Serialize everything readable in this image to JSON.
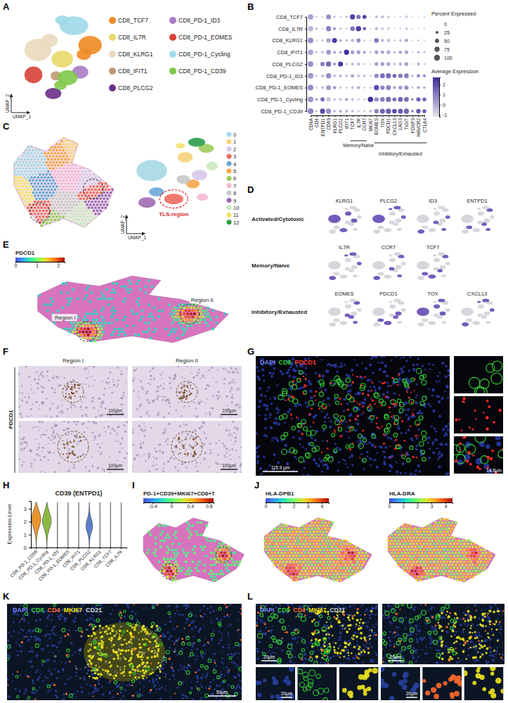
{
  "chart_data": [
    {
      "type": "dot",
      "categories": [
        "CD8A",
        "CD4",
        "ENTPD1",
        "CD69",
        "KLRG1",
        "PLCG2",
        "IFIT1",
        "TCF7",
        "IL7R",
        "CCR7",
        "MKI67",
        "EOMES",
        "TOX",
        "PDCD1",
        "CXCL13",
        "LAG3",
        "TIGIT",
        "FOXP3",
        "HAVCR2",
        "CTLA4"
      ],
      "rows": [
        "CD8_TCF7",
        "CD8_IL7R",
        "CD8_KLRG1",
        "CD8_IFIT1",
        "CD8_PLCG2",
        "CD8_PD-1_ID3",
        "CD8_PD-1_EOMES",
        "CD8_PD-1_Cycling",
        "CD8_PD-1_CD39"
      ],
      "pct": [
        [
          85,
          10,
          8,
          70,
          15,
          10,
          15,
          75,
          55,
          45,
          5,
          25,
          25,
          20,
          5,
          10,
          20,
          5,
          5,
          5
        ],
        [
          80,
          12,
          10,
          75,
          30,
          15,
          10,
          60,
          80,
          35,
          5,
          30,
          20,
          20,
          5,
          10,
          20,
          5,
          5,
          5
        ],
        [
          90,
          8,
          15,
          60,
          70,
          20,
          15,
          30,
          50,
          10,
          5,
          60,
          30,
          35,
          10,
          20,
          35,
          5,
          10,
          5
        ],
        [
          85,
          10,
          20,
          65,
          25,
          20,
          75,
          40,
          40,
          20,
          10,
          40,
          35,
          40,
          15,
          30,
          40,
          5,
          15,
          10
        ],
        [
          90,
          5,
          55,
          80,
          30,
          70,
          15,
          25,
          30,
          10,
          5,
          40,
          40,
          45,
          15,
          30,
          45,
          5,
          20,
          10
        ],
        [
          90,
          10,
          25,
          75,
          20,
          20,
          15,
          35,
          25,
          15,
          10,
          55,
          65,
          75,
          45,
          55,
          65,
          10,
          35,
          25
        ],
        [
          90,
          8,
          20,
          70,
          30,
          15,
          10,
          20,
          30,
          10,
          8,
          75,
          55,
          65,
          25,
          40,
          55,
          8,
          25,
          15
        ],
        [
          90,
          15,
          50,
          50,
          15,
          15,
          25,
          20,
          15,
          10,
          80,
          55,
          60,
          75,
          45,
          65,
          65,
          15,
          55,
          45
        ],
        [
          95,
          10,
          75,
          75,
          20,
          20,
          20,
          20,
          15,
          10,
          15,
          60,
          70,
          80,
          60,
          70,
          75,
          15,
          60,
          45
        ]
      ],
      "avg": [
        [
          0.2,
          -0.5,
          -0.8,
          0.6,
          -0.4,
          -0.5,
          -0.3,
          2.2,
          1.2,
          2.3,
          -0.6,
          -0.4,
          -0.3,
          -0.7,
          -0.6,
          -0.7,
          -0.5,
          -0.3,
          -0.6,
          -0.5
        ],
        [
          -0.2,
          0.2,
          -0.7,
          0.9,
          0.2,
          -0.3,
          -0.4,
          1.2,
          2.3,
          1.4,
          -0.6,
          -0.3,
          -0.6,
          -0.6,
          -0.6,
          -0.6,
          -0.5,
          -0.3,
          -0.5,
          -0.4
        ],
        [
          0.6,
          -0.4,
          -0.5,
          0.1,
          2.4,
          0.0,
          -0.2,
          -0.2,
          0.6,
          -0.3,
          -0.5,
          1.1,
          -0.2,
          -0.4,
          -0.5,
          -0.4,
          0.0,
          -0.4,
          -0.3,
          -0.5
        ],
        [
          0.1,
          0.0,
          -0.3,
          0.4,
          0.1,
          0.1,
          2.6,
          0.3,
          0.3,
          0.4,
          -0.2,
          0.2,
          0.2,
          0.0,
          -0.2,
          0.2,
          0.1,
          -0.2,
          0.0,
          0.0
        ],
        [
          0.5,
          -0.6,
          1.0,
          1.3,
          0.2,
          2.5,
          -0.3,
          -0.4,
          -0.2,
          -0.4,
          -0.5,
          0.2,
          0.3,
          0.1,
          -0.3,
          0.0,
          0.2,
          -0.4,
          0.2,
          -0.3
        ],
        [
          0.4,
          -0.2,
          -0.1,
          0.7,
          -0.2,
          -0.1,
          -0.2,
          0.1,
          -0.4,
          -0.1,
          -0.2,
          0.7,
          1.3,
          1.4,
          1.5,
          1.1,
          1.0,
          0.5,
          0.6,
          0.8
        ],
        [
          0.7,
          -0.4,
          -0.2,
          0.4,
          0.5,
          -0.4,
          -0.4,
          -0.3,
          0.0,
          -0.4,
          -0.3,
          2.0,
          0.8,
          0.9,
          0.2,
          0.4,
          0.6,
          0.0,
          0.2,
          0.1
        ],
        [
          0.5,
          0.4,
          1.3,
          -0.5,
          -0.3,
          -0.2,
          0.4,
          -0.3,
          -0.6,
          -0.3,
          2.6,
          0.7,
          1.0,
          1.3,
          1.2,
          1.5,
          1.2,
          1.0,
          1.4,
          1.4
        ],
        [
          0.8,
          0.1,
          2.0,
          0.6,
          -0.2,
          0.2,
          0.0,
          -0.3,
          -0.5,
          -0.3,
          0.2,
          0.8,
          1.5,
          1.6,
          2.0,
          1.7,
          1.5,
          1.4,
          1.7,
          1.6
        ]
      ],
      "size_legend": {
        "title": "Percent Expressed",
        "ticks": [
          0,
          25,
          50,
          75,
          100
        ]
      },
      "color_legend": {
        "title": "Average Expression",
        "range": [
          -1.2,
          2.7
        ],
        "ticks": [
          -1,
          0,
          1,
          2
        ]
      },
      "groups": [
        {
          "label": "Memory/Naive",
          "genes": [
            "TCF7",
            "IL7R",
            "CCR7"
          ]
        },
        {
          "label": "Inhibitory/Exhausted",
          "genes": [
            "EOMES",
            "TOX",
            "PDCD1",
            "CXCL13",
            "LAG3",
            "TIGIT",
            "FOXP3",
            "HAVCR2",
            "CTLA4"
          ]
        }
      ]
    },
    {
      "type": "violin",
      "title": "CD39 (ENTPD1)",
      "y_label": "Expression Level",
      "categories": [
        "CD8_PD-1_CD39",
        "CD8_PD-1_Cycling",
        "CD8_PD-1_ID3",
        "CD8_PD-1_EOMES",
        "CD8_IFIT1",
        "CD8_PLCG2",
        "CD8_KLRG1",
        "CD8_TCF7",
        "CD8_IL7R"
      ],
      "colors": [
        "#e8952e",
        "#8ab840",
        "#4aa8a0",
        "#3aa0c8",
        "#5b8fd0",
        "#5b7fc8",
        "#9f7fc8",
        "#c77fc0",
        "#e07fa0"
      ],
      "density_y": [
        0,
        0.5,
        1,
        1.5,
        2,
        2.5,
        3,
        3.5
      ],
      "density": [
        [
          0,
          0.05,
          0.15,
          0.5,
          0.95,
          0.9,
          0.35,
          0.05
        ],
        [
          0,
          0.05,
          0.15,
          0.55,
          1.0,
          0.7,
          0.25,
          0.03
        ],
        [
          0.02,
          0.01,
          0.01,
          0.01,
          0.01,
          0.01,
          0,
          0
        ],
        [
          0.02,
          0.01,
          0.01,
          0.01,
          0.01,
          0,
          0,
          0
        ],
        [
          0.02,
          0.01,
          0.01,
          0.01,
          0.01,
          0.01,
          0,
          0
        ],
        [
          0,
          0.05,
          0.2,
          0.75,
          0.6,
          0.15,
          0.03,
          0
        ],
        [
          0.02,
          0.01,
          0.01,
          0.01,
          0.01,
          0.01,
          0,
          0
        ],
        [
          0.02,
          0.01,
          0.01,
          0.01,
          0.01,
          0,
          0,
          0
        ],
        [
          0.02,
          0.01,
          0.01,
          0.01,
          0.01,
          0.01,
          0.01,
          0
        ]
      ],
      "ylim": [
        0,
        3.6
      ],
      "yticks": [
        0,
        1,
        2,
        3
      ]
    }
  ],
  "panels": {
    "A": {
      "label": "A",
      "x_title": "UMAP_1",
      "y_title": "UMAP_2",
      "xlim": [
        0,
        10
      ],
      "ylim": [
        0,
        10
      ],
      "clusters": [
        {
          "name": "CD8_TCF7",
          "color": "#f08a24",
          "blobs": [
            [
              8.3,
              6.5,
              1.3,
              1.0
            ],
            [
              7.6,
              5.5,
              0.8,
              0.6
            ]
          ]
        },
        {
          "name": "CD8_IL7R",
          "color": "#e8d86a",
          "blobs": [
            [
              5.2,
              5.0,
              1.2,
              0.9
            ]
          ]
        },
        {
          "name": "CD8_KLRG1",
          "color": "#ead9bd",
          "blobs": [
            [
              2.5,
              6.0,
              1.5,
              1.2
            ],
            [
              3.8,
              7.0,
              0.9,
              0.7
            ]
          ]
        },
        {
          "name": "CD8_IFIT1",
          "color": "#c19a74",
          "blobs": [
            [
              4.5,
              3.2,
              0.6,
              0.5
            ]
          ]
        },
        {
          "name": "CD8_PLCG2",
          "color": "#6b2f8a",
          "blobs": [
            [
              4.2,
              1.3,
              0.9,
              0.6
            ]
          ]
        },
        {
          "name": "CD8_PD-1_ID3",
          "color": "#a77cc8",
          "blobs": [
            [
              7.2,
              3.6,
              0.9,
              0.7
            ]
          ]
        },
        {
          "name": "CD8_PD-1_EOMES",
          "color": "#d8423a",
          "blobs": [
            [
              2.0,
              3.3,
              1.0,
              0.9
            ]
          ]
        },
        {
          "name": "CD8_PD-1_Cycling",
          "color": "#9ed9ea",
          "blobs": [
            [
              6.5,
              8.6,
              1.6,
              1.0
            ],
            [
              5.2,
              9.2,
              0.8,
              0.5
            ]
          ]
        },
        {
          "name": "CD8_PD-1_CD39",
          "color": "#7fc94a",
          "blobs": [
            [
              5.8,
              3.0,
              1.1,
              0.8
            ],
            [
              5.0,
              2.2,
              0.7,
              0.5
            ]
          ]
        }
      ]
    },
    "B": {
      "label": "B"
    },
    "C": {
      "label": "C",
      "x_title": "UMAP_1",
      "y_title": "UMAP_2",
      "xlim": [
        0,
        10
      ],
      "ylim": [
        0,
        10
      ],
      "annotation": {
        "text": "TLS-region",
        "cluster": "3"
      },
      "clusters": [
        {
          "name": "0",
          "color": "#a7d8e6",
          "blobs": [
            [
              2.5,
              6.0,
              1.6,
              1.2
            ]
          ]
        },
        {
          "name": "1",
          "color": "#f6d37a",
          "blobs": [
            [
              6.0,
              7.5,
              0.8,
              0.6
            ]
          ]
        },
        {
          "name": "2",
          "color": "#d7c8ea",
          "blobs": [
            [
              7.5,
              5.5,
              0.8,
              0.6
            ]
          ]
        },
        {
          "name": "3",
          "color": "#ee6a5f",
          "blobs": [
            [
              4.8,
              2.8,
              1.0,
              0.6
            ]
          ]
        },
        {
          "name": "4",
          "color": "#6ba6d6",
          "blobs": [
            [
              3.0,
              3.6,
              0.8,
              0.5
            ]
          ]
        },
        {
          "name": "5",
          "color": "#f7a54a",
          "blobs": [
            [
              6.8,
              4.5,
              0.7,
              0.5
            ]
          ]
        },
        {
          "name": "6",
          "color": "#9ccb5a",
          "blobs": [
            [
              8.2,
              8.5,
              0.8,
              0.5
            ]
          ]
        },
        {
          "name": "7",
          "color": "#f5b8d4",
          "blobs": [
            [
              7.8,
              3.0,
              0.6,
              0.4
            ]
          ]
        },
        {
          "name": "8",
          "color": "#c8c8c8",
          "blobs": [
            [
              5.8,
              5.0,
              0.7,
              0.5
            ]
          ]
        },
        {
          "name": "9",
          "color": "#9e6bb5",
          "blobs": [
            [
              2.0,
              2.4,
              0.9,
              0.6
            ]
          ]
        },
        {
          "name": "10",
          "color": "#c9e9c0",
          "blobs": [
            [
              8.8,
              6.5,
              0.6,
              0.5
            ]
          ]
        },
        {
          "name": "11",
          "color": "#f2e36a",
          "blobs": [
            [
              5.5,
              8.8,
              0.5,
              0.3
            ]
          ]
        },
        {
          "name": "12",
          "color": "#2a9d4a",
          "blobs": [
            [
              7.2,
              9.2,
              0.9,
              0.5
            ]
          ]
        }
      ]
    },
    "D": {
      "label": "D",
      "rows": [
        {
          "label": "Activated/Cytotoxic",
          "genes": [
            "KLRG1",
            "PLCG2",
            "ID3",
            "ENTPD1"
          ]
        },
        {
          "label": "Memory/Naive",
          "genes": [
            "IL7R",
            "CCR7",
            "TCF7"
          ]
        },
        {
          "label": "Inhibitory/Exhausted",
          "genes": [
            "EOMES",
            "PDCD1",
            "TOX",
            "CXCL13"
          ]
        }
      ]
    },
    "E": {
      "label": "E",
      "colorbar": {
        "title": "PDCD1",
        "range": [
          0,
          2.3
        ],
        "ticks": [
          0,
          1,
          2
        ]
      },
      "regions": [
        "Region I",
        "Region II"
      ]
    },
    "F": {
      "label": "F",
      "row_label": "PDCD1",
      "columns": [
        "Region I",
        "Region II"
      ],
      "scale_bar": "100μm"
    },
    "G": {
      "label": "G",
      "channels": [
        {
          "name": "DAPI",
          "color": "#7b86ff"
        },
        {
          "name": "CD8",
          "color": "#35d435"
        },
        {
          "name": "PDCD1",
          "color": "#ff3b3b"
        }
      ],
      "scale_bar": "115.9 μm",
      "inset_scale_bar": "14.5μm"
    },
    "H": {
      "label": "H"
    },
    "I": {
      "label": "I",
      "colorbar": {
        "title": "PD-1+CD39+MKI67+CD8+T",
        "range": [
          -0.6,
          0.9
        ],
        "ticks": [
          -0.4,
          0,
          0.4,
          0.8
        ]
      }
    },
    "J": {
      "label": "J",
      "maps": [
        {
          "title": "HLA-DPB1",
          "range": [
            0,
            4.5
          ],
          "ticks": [
            0,
            1,
            2,
            3,
            4
          ]
        },
        {
          "title": "HLA-DRA",
          "range": [
            0,
            4.5
          ],
          "ticks": [
            0,
            1,
            2,
            3,
            4
          ]
        }
      ]
    },
    "K": {
      "label": "K",
      "channels": [
        {
          "name": "DAPI",
          "color": "#7b86ff"
        },
        {
          "name": "CD8",
          "color": "#35d435"
        },
        {
          "name": "CD4",
          "color": "#ff6a2a"
        },
        {
          "name": "MKI67",
          "color": "#f2e600"
        },
        {
          "name": "CD21",
          "color": "#d0d0d0"
        }
      ],
      "scale_bar": "50μm"
    },
    "L": {
      "label": "L",
      "channels": [
        {
          "name": "DAPI",
          "color": "#7b86ff"
        },
        {
          "name": "CD8",
          "color": "#35d435"
        },
        {
          "name": "CD4",
          "color": "#ff6a2a"
        },
        {
          "name": "MKI67",
          "color": "#f2e600"
        },
        {
          "name": "CD21",
          "color": "#d0d0d0"
        }
      ],
      "scale_bar": "20μm"
    }
  }
}
